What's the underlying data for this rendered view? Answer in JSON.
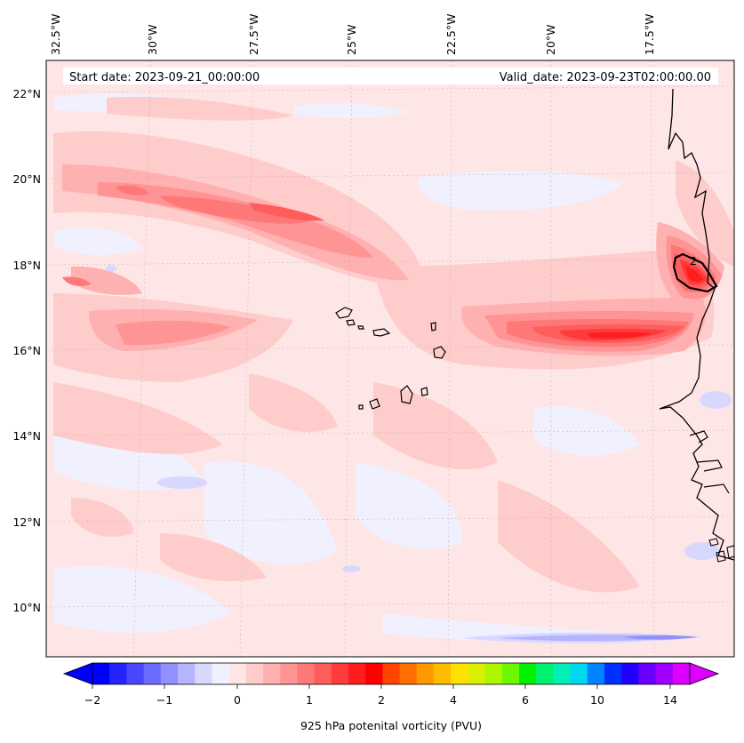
{
  "header": {
    "start_date": "Start date: 2023-09-21_00:00:00",
    "valid_date": "Valid_date: 2023-09-23T02:00:00.00"
  },
  "map": {
    "lon_labels": [
      "32.5°W",
      "30°W",
      "27.5°W",
      "25°W",
      "22.5°W",
      "20°W",
      "17.5°W"
    ],
    "lat_labels": [
      "22°N",
      "20°N",
      "18°N",
      "16°N",
      "14°N",
      "12°N",
      "10°N"
    ],
    "extent": {
      "lon_min": -33.0,
      "lon_max": -15.8,
      "lat_min": 8.9,
      "lat_max": 22.8
    },
    "gridlines": true,
    "contour_label": "2",
    "features": [
      "Cape Verde islands",
      "West African coastline"
    ]
  },
  "colorbar": {
    "label": "925 hPa potenital vorticity (PVU)",
    "tick_labels": [
      "−2",
      "−1",
      "0",
      "1",
      "2",
      "4",
      "6",
      "10",
      "14"
    ],
    "extend": "both",
    "colors": [
      "#0000ff",
      "#2424ff",
      "#4848ff",
      "#6c6cff",
      "#9090ff",
      "#b4b4ff",
      "#d8d8ff",
      "#f0f0ff",
      "#ffe6e6",
      "#ffcccc",
      "#ffb0b0",
      "#ff9494",
      "#ff7878",
      "#ff5c5c",
      "#ff3c3c",
      "#ff1e1e",
      "#ff0000",
      "#ff4400",
      "#ff7000",
      "#ff9900",
      "#ffbb00",
      "#ffe100",
      "#dbef00",
      "#aef500",
      "#6cf800",
      "#00f000",
      "#00f070",
      "#00f0b8",
      "#00d8f0",
      "#0084ff",
      "#0030ff",
      "#2200ff",
      "#6a00ff",
      "#a000ff",
      "#dd00ff"
    ]
  }
}
